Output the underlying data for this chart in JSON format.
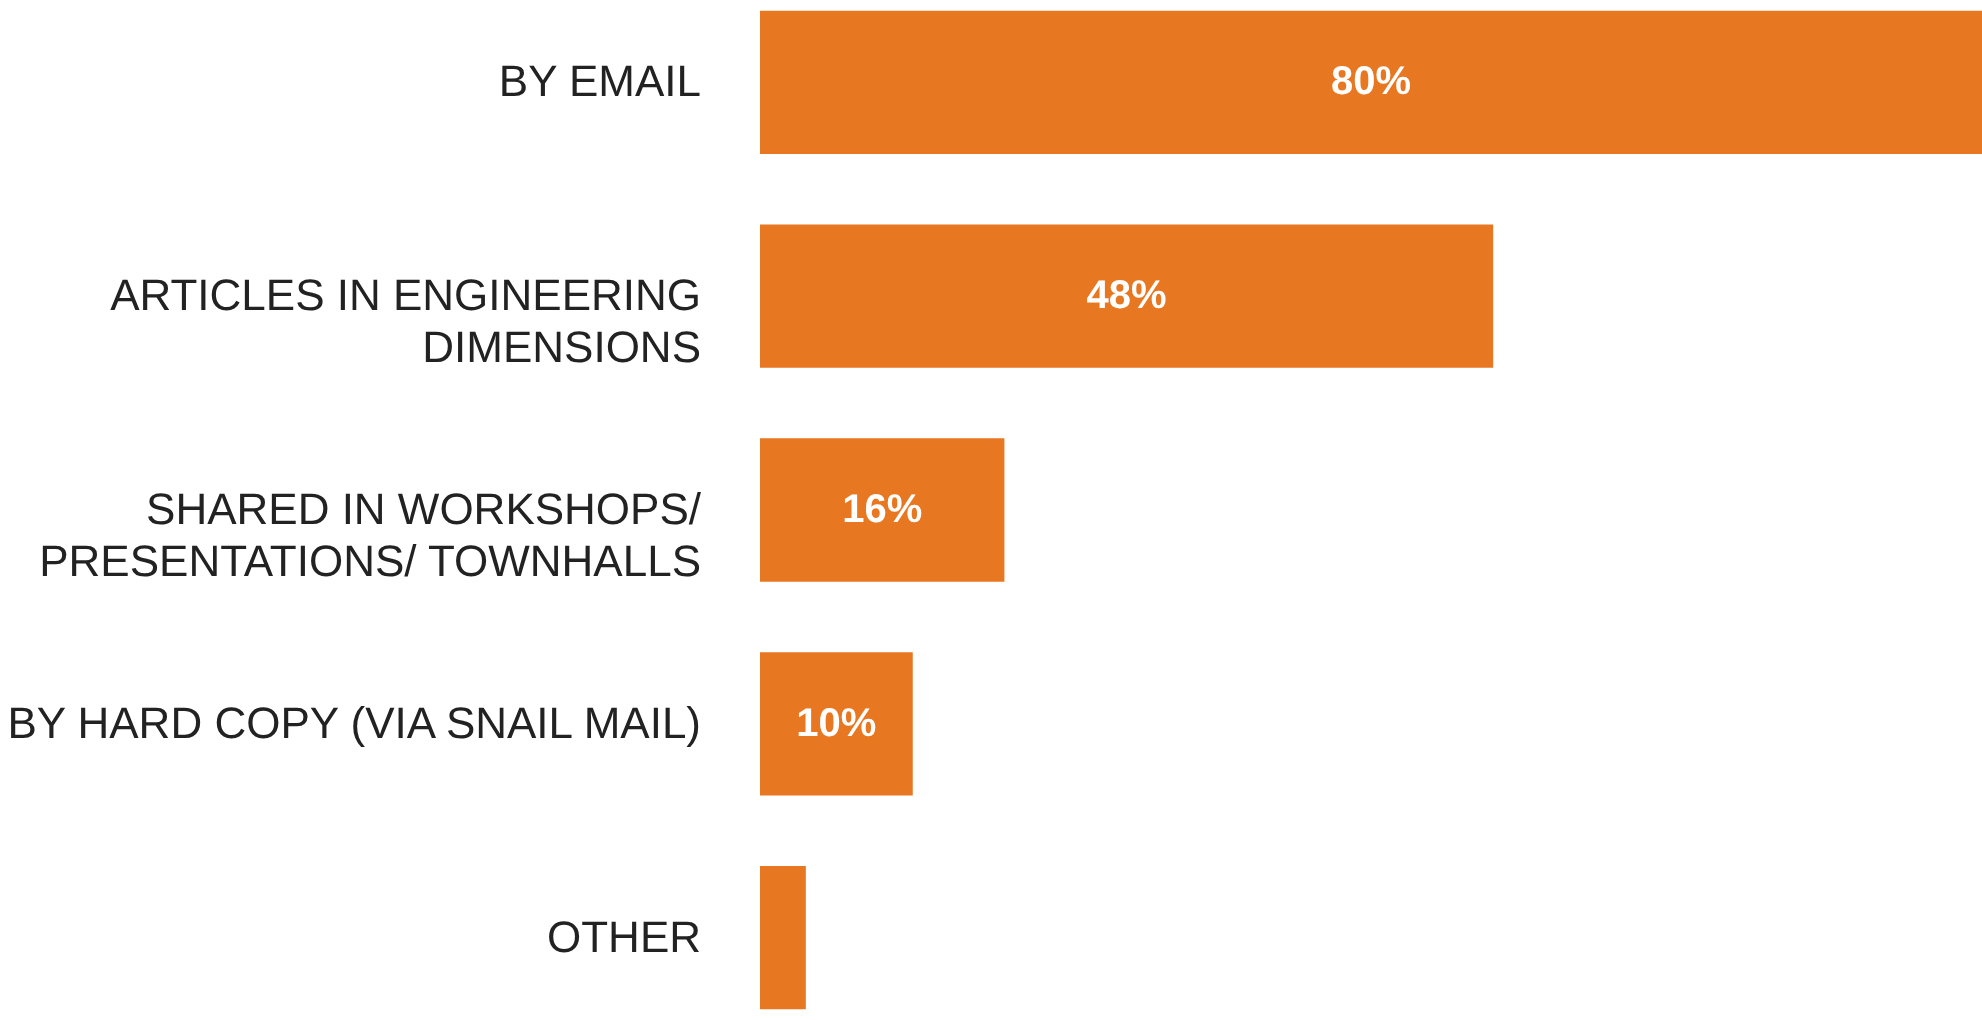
{
  "chart_data": {
    "type": "bar",
    "orientation": "horizontal",
    "categories": [
      "BY EMAIL",
      "ARTICLES IN ENGINEERING\nDIMENSIONS",
      "SHARED IN WORKSHOPS/\nPRESENTATIONS/ TOWNHALLS",
      "BY HARD COPY (VIA SNAIL MAIL)",
      "OTHER"
    ],
    "values": [
      80,
      48,
      16,
      10,
      3
    ],
    "value_labels": [
      "80%",
      "48%",
      "16%",
      "10%",
      null
    ],
    "color": "#e87722",
    "grid": false
  }
}
